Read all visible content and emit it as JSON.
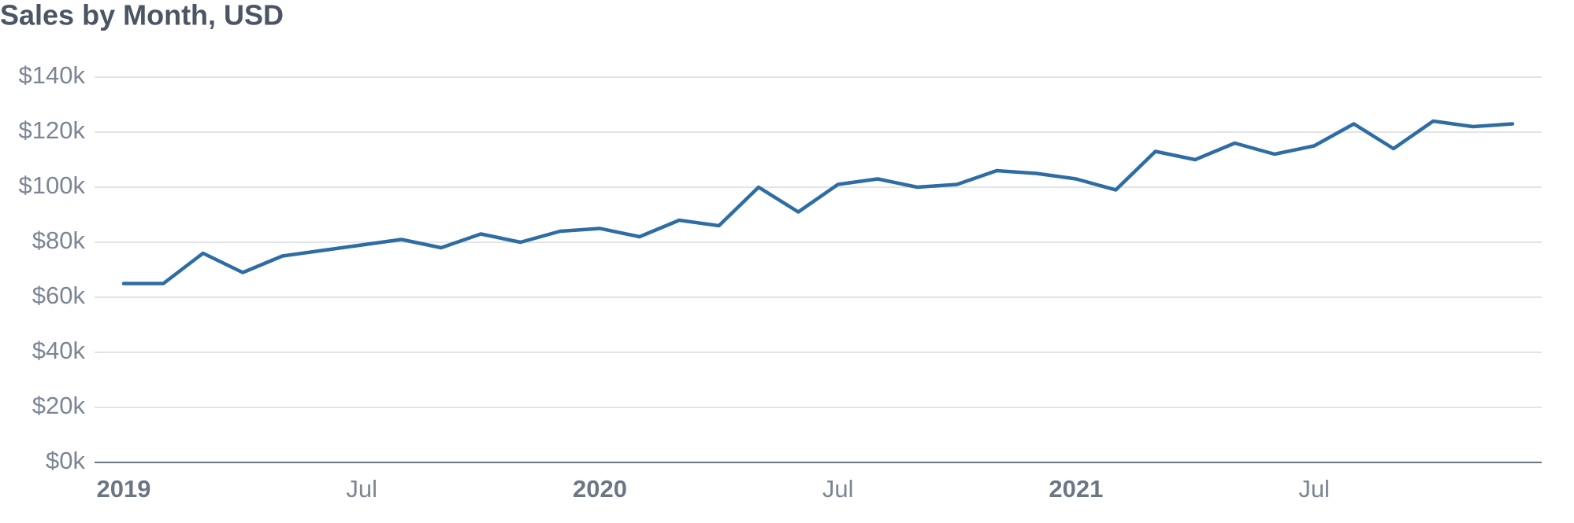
{
  "chart_data": {
    "type": "line",
    "title": "Sales by Month, USD",
    "categories": [
      "2019",
      null,
      null,
      null,
      null,
      null,
      "Jul",
      null,
      null,
      null,
      null,
      null,
      "2020",
      null,
      null,
      null,
      null,
      null,
      "Jul",
      null,
      null,
      null,
      null,
      null,
      "2021",
      null,
      null,
      null,
      null,
      null,
      "Jul",
      null,
      null,
      null,
      null,
      null
    ],
    "series": [
      {
        "color": "#2e6da4",
        "values": [
          65000,
          65000,
          76000,
          69000,
          75000,
          77000,
          79000,
          81000,
          78000,
          83000,
          80000,
          84000,
          85000,
          82000,
          88000,
          86000,
          100000,
          91000,
          101000,
          103000,
          100000,
          101000,
          106000,
          105000,
          103000,
          99000,
          113000,
          110000,
          116000,
          112000,
          115000,
          123000,
          114000,
          124000,
          122000,
          123000
        ]
      }
    ],
    "ylim": [
      0,
      140000
    ],
    "yticks": [
      {
        "value": 0,
        "label": "$0k"
      },
      {
        "value": 20000,
        "label": "$20k"
      },
      {
        "value": 40000,
        "label": "$40k"
      },
      {
        "value": 60000,
        "label": "$60k"
      },
      {
        "value": 80000,
        "label": "$80k"
      },
      {
        "value": 100000,
        "label": "$100k"
      },
      {
        "value": 120000,
        "label": "$120k"
      },
      {
        "value": 140000,
        "label": "$140k"
      }
    ],
    "grid": true
  }
}
